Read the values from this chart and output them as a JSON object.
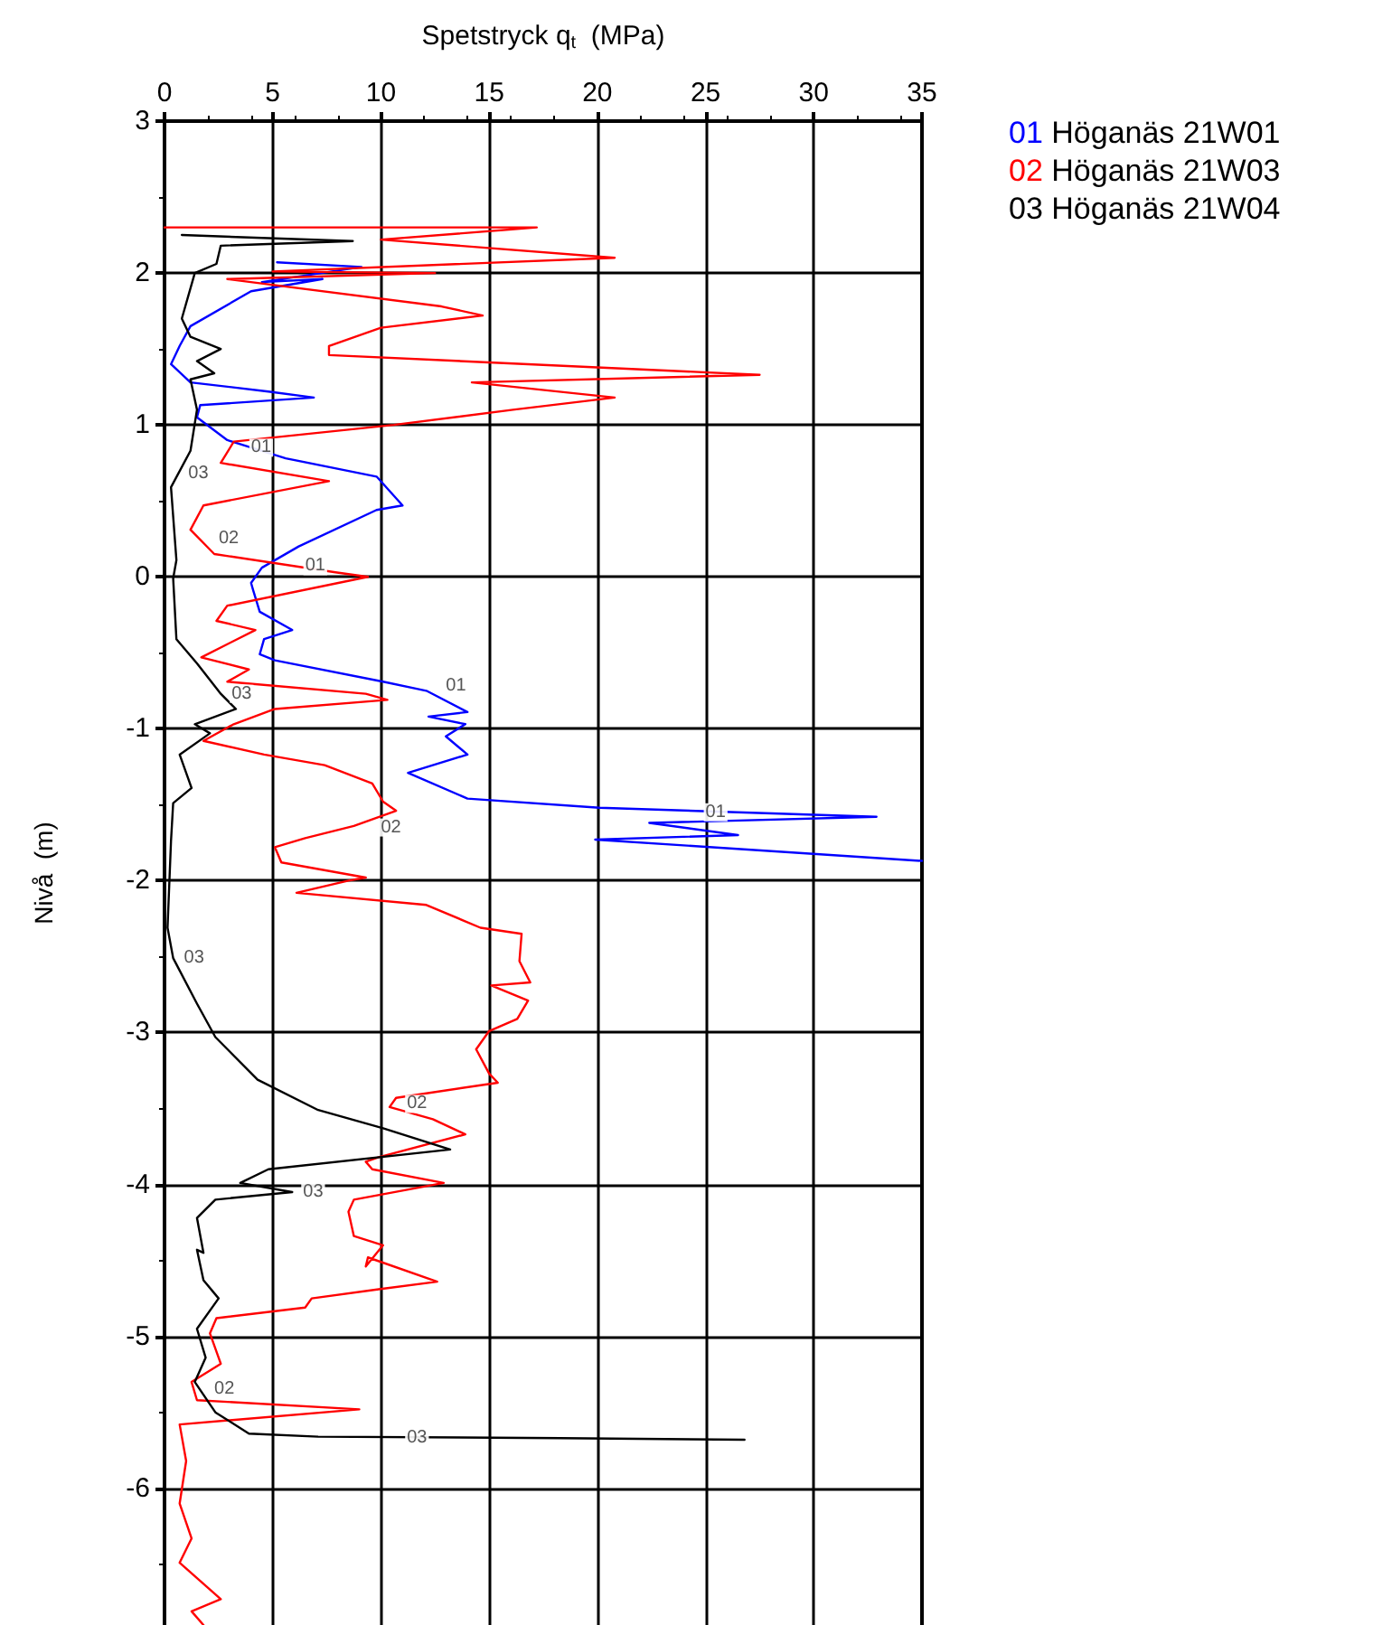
{
  "chart_data": {
    "type": "line",
    "xlabel": "Spetstryck q$_{t}$  (MPa)",
    "ylabel": "Nivå  (m)",
    "xlim": [
      0,
      35
    ],
    "xticks": [
      0,
      5,
      10,
      15,
      20,
      25,
      30,
      35
    ],
    "ylim": [
      -6.9,
      3
    ],
    "yticks": [
      -6,
      -5,
      -4,
      -3,
      -2,
      -1,
      0,
      1,
      2,
      3
    ],
    "grid": true,
    "legend": "top right",
    "marker": "none",
    "line_style": "solid",
    "series": [
      {
        "name": "01 Höganäs 21W01",
        "color": "#0000ff",
        "x": [
          5.2,
          9.1,
          4.5,
          7.3,
          4.0,
          1.2,
          0.7,
          0.3,
          1.2,
          4.8,
          6.9,
          1.65,
          1.5,
          2.9,
          5.6,
          9.8,
          11,
          9.8,
          6.2,
          4.5,
          4.0,
          4.1,
          4.4,
          5.9,
          4.6,
          4.4,
          5.1,
          10.1,
          12.1,
          14,
          12.2,
          13.9,
          13,
          14,
          11.25,
          14,
          20.1,
          32.9,
          22.4,
          26.5,
          19.9,
          35
        ],
        "values": [
          2.07,
          2.04,
          1.94,
          1.96,
          1.88,
          1.65,
          1.52,
          1.4,
          1.28,
          1.22,
          1.18,
          1.13,
          1.05,
          0.9,
          0.78,
          0.66,
          0.47,
          0.44,
          0.2,
          0.06,
          -0.04,
          -0.09,
          -0.23,
          -0.35,
          -0.41,
          -0.51,
          -0.55,
          -0.69,
          -0.75,
          -0.89,
          -0.92,
          -0.97,
          -1.05,
          -1.17,
          -1.29,
          -1.46,
          -1.52,
          -1.58,
          -1.62,
          -1.7,
          -1.73,
          -1.87
        ]
      },
      {
        "name": "02 Höganäs 21W03",
        "color": "#ff0000",
        "x": [
          0,
          17.2,
          10,
          20.8,
          5,
          12.5,
          2.9,
          12.8,
          14.7,
          10,
          7.6,
          7.6,
          27.5,
          14.2,
          20.8,
          16.1,
          10.6,
          3.2,
          2.6,
          7.6,
          1.8,
          1.2,
          2.3,
          7.9,
          9.4,
          2.9,
          2.4,
          4.2,
          1.7,
          3.9,
          2.9,
          9.3,
          10.3,
          5.1,
          3.2,
          1.8,
          4.6,
          7.4,
          9.6,
          10.1,
          10.7,
          8.75,
          6.5,
          5.1,
          5.4,
          9.3,
          8.5,
          6.1,
          12.1,
          14.6,
          16.5,
          16.4,
          16.9,
          15.1,
          16.8,
          16.3,
          15,
          14.4,
          15,
          15.4,
          10.7,
          10.4,
          12.4,
          13.9,
          9.9,
          9.3,
          9.6,
          12.9,
          8.75,
          8.5,
          8.75,
          10.1,
          9.3,
          9.4,
          12.6,
          9.9,
          6.8,
          6.5,
          2.4,
          2.1,
          2.6,
          1.25,
          1.5,
          9.0,
          0.7,
          1.0,
          0.7,
          1.25,
          0.7,
          2.6,
          1.25,
          1.8
        ],
        "values": [
          2.3,
          2.3,
          2.22,
          2.1,
          2.01,
          2.0,
          1.96,
          1.78,
          1.72,
          1.64,
          1.52,
          1.46,
          1.33,
          1.28,
          1.18,
          1.1,
          1.0,
          0.89,
          0.75,
          0.63,
          0.47,
          0.31,
          0.15,
          0.03,
          0.0,
          -0.19,
          -0.29,
          -0.35,
          -0.53,
          -0.61,
          -0.69,
          -0.77,
          -0.81,
          -0.87,
          -0.97,
          -1.08,
          -1.17,
          -1.24,
          -1.36,
          -1.48,
          -1.54,
          -1.64,
          -1.72,
          -1.78,
          -1.88,
          -1.98,
          -2.0,
          -2.08,
          -2.16,
          -2.31,
          -2.35,
          -2.53,
          -2.67,
          -2.69,
          -2.79,
          -2.91,
          -2.99,
          -3.11,
          -3.27,
          -3.33,
          -3.43,
          -3.49,
          -3.57,
          -3.67,
          -3.82,
          -3.85,
          -3.9,
          -3.99,
          -4.1,
          -4.18,
          -4.34,
          -4.4,
          -4.54,
          -4.48,
          -4.64,
          -4.69,
          -4.75,
          -4.81,
          -4.88,
          -4.98,
          -5.18,
          -5.3,
          -5.42,
          -5.48,
          -5.58,
          -5.82,
          -6.1,
          -6.33,
          -6.49,
          -6.73,
          -6.81,
          -6.9
        ]
      },
      {
        "name": "03 Höganäs 21W04",
        "color": "#000000",
        "x": [
          0.8,
          8.7,
          2.6,
          2.4,
          1.4,
          0.8,
          1.2,
          2.6,
          1.5,
          2.3,
          1.2,
          1.5,
          1.2,
          0.3,
          0.55,
          0.4,
          0.55,
          1.5,
          2.6,
          3.3,
          1.4,
          2.1,
          0.7,
          1.25,
          0.4,
          0.3,
          0.14,
          0.4,
          1.5,
          2.35,
          4.3,
          7.1,
          10.1,
          13.2,
          4.8,
          3.5,
          5.9,
          2.35,
          1.5,
          1.8,
          1.5,
          1.8,
          2.5,
          1.5,
          1.9,
          1.4,
          2.35,
          3.9,
          7.1,
          18.3,
          26.8
        ],
        "values": [
          2.25,
          2.21,
          2.18,
          2.06,
          2.0,
          1.7,
          1.58,
          1.5,
          1.42,
          1.34,
          1.3,
          1.1,
          0.83,
          0.59,
          0.11,
          -0.01,
          -0.41,
          -0.57,
          -0.77,
          -0.87,
          -0.97,
          -1.03,
          -1.17,
          -1.39,
          -1.49,
          -1.74,
          -2.31,
          -2.51,
          -2.81,
          -3.03,
          -3.31,
          -3.51,
          -3.63,
          -3.77,
          -3.9,
          -3.99,
          -4.05,
          -4.1,
          -4.22,
          -4.45,
          -4.43,
          -4.63,
          -4.75,
          -4.95,
          -5.14,
          -5.3,
          -5.5,
          -5.64,
          -5.66,
          -5.67,
          -5.68
        ]
      }
    ],
    "annotations": [
      {
        "text": "01",
        "x": 3.5,
        "y": 0.85
      },
      {
        "text": "01",
        "x": 6,
        "y": 0.07
      },
      {
        "text": "01",
        "x": 12.5,
        "y": -0.72
      },
      {
        "text": "01",
        "x": 24.5,
        "y": -1.55
      },
      {
        "text": "02",
        "x": 2,
        "y": 0.25
      },
      {
        "text": "02",
        "x": 9.5,
        "y": -1.65
      },
      {
        "text": "02",
        "x": 10.7,
        "y": -3.47
      },
      {
        "text": "02",
        "x": 1.8,
        "y": -5.35
      },
      {
        "text": "03",
        "x": 0.6,
        "y": 0.68
      },
      {
        "text": "03",
        "x": 2.6,
        "y": -0.77
      },
      {
        "text": "03",
        "x": 0.4,
        "y": -2.51
      },
      {
        "text": "03",
        "x": 5.9,
        "y": -4.05
      },
      {
        "text": "03",
        "x": 10.7,
        "y": -5.67
      }
    ]
  }
}
